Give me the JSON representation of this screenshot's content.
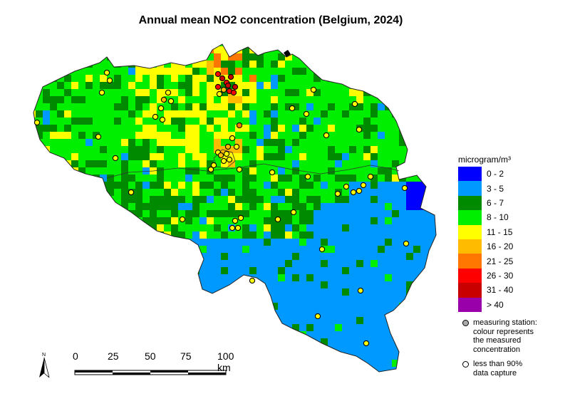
{
  "title": "Annual mean NO2 concentration (Belgium, 2024)",
  "legend": {
    "title": "microgram/m³",
    "classes": [
      {
        "label": "0 - 2",
        "color": "#0000ff"
      },
      {
        "label": "3 - 5",
        "color": "#0099ff"
      },
      {
        "label": "6 - 7",
        "color": "#008a00"
      },
      {
        "label": "8 - 10",
        "color": "#00ee00"
      },
      {
        "label": "11 - 15",
        "color": "#ffff00"
      },
      {
        "label": "16 - 20",
        "color": "#ffbb00"
      },
      {
        "label": "21 - 25",
        "color": "#ff7700"
      },
      {
        "label": "26 - 30",
        "color": "#ff0000"
      },
      {
        "label": "31 - 40",
        "color": "#c80000"
      },
      {
        "label": "> 40",
        "color": "#9900aa"
      }
    ]
  },
  "notes": {
    "station_line1": "measuring station:",
    "station_line2": "colour represents",
    "station_line3": "the measured",
    "station_line4": "concentration",
    "capture_line1": "less than 90%",
    "capture_line2": "data capture"
  },
  "scale_bar": {
    "labels": [
      "0",
      "25",
      "50",
      "75",
      "100 km"
    ]
  },
  "north_arrow_label": "N"
}
